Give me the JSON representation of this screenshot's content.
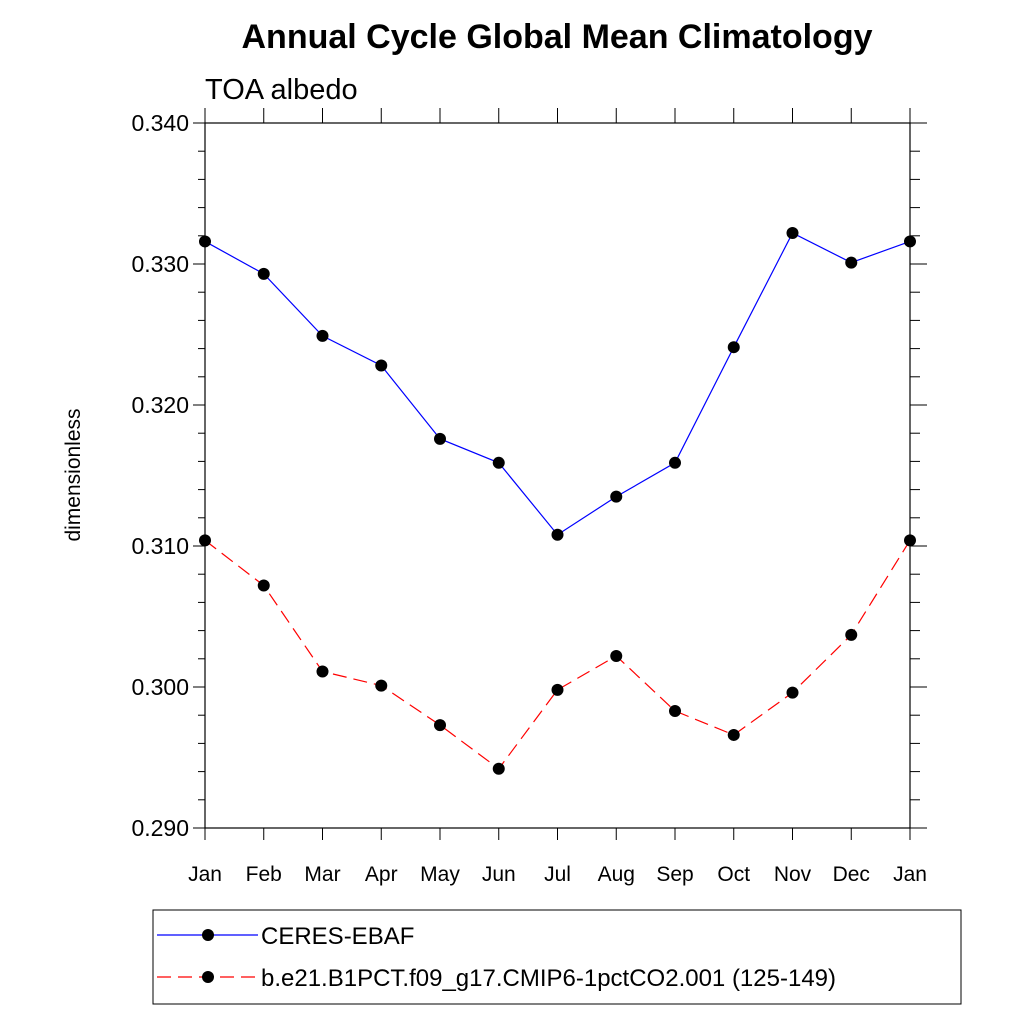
{
  "chart_data": {
    "type": "line",
    "title": "Annual Cycle Global Mean Climatology",
    "subtitle": "TOA albedo",
    "xlabel": "",
    "ylabel": "dimensionless",
    "categories": [
      "Jan",
      "Feb",
      "Mar",
      "Apr",
      "May",
      "Jun",
      "Jul",
      "Aug",
      "Sep",
      "Oct",
      "Nov",
      "Dec",
      "Jan"
    ],
    "ylim": [
      0.29,
      0.34
    ],
    "yticks": [
      0.29,
      0.3,
      0.31,
      0.32,
      0.33,
      0.34
    ],
    "ytick_labels": [
      "0.290",
      "0.300",
      "0.310",
      "0.320",
      "0.330",
      "0.340"
    ],
    "grid": false,
    "legend_position": "bottom",
    "series": [
      {
        "name": "CERES-EBAF",
        "color": "#0000ff",
        "line_style": "solid",
        "marker": "circle",
        "values": [
          0.3316,
          0.3293,
          0.3249,
          0.3228,
          0.3176,
          0.3159,
          0.3108,
          0.3135,
          0.3159,
          0.3241,
          0.3322,
          0.3301,
          0.3316
        ]
      },
      {
        "name": "b.e21.B1PCT.f09_g17.CMIP6-1pctCO2.001 (125-149)",
        "color": "#ff0000",
        "line_style": "dashed",
        "marker": "circle",
        "values": [
          0.3104,
          0.3072,
          0.3011,
          0.3001,
          0.2973,
          0.2942,
          0.2998,
          0.3022,
          0.2983,
          0.2966,
          0.2996,
          0.3037,
          0.3104
        ]
      }
    ]
  }
}
